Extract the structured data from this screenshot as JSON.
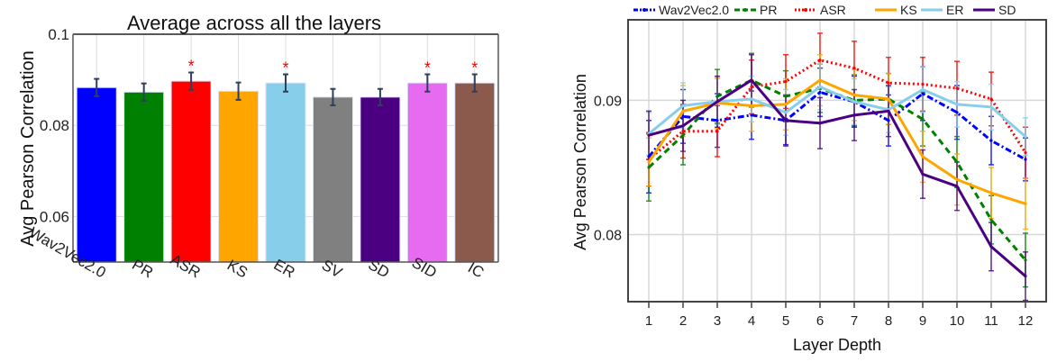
{
  "chart_data": [
    {
      "type": "bar",
      "title": "Average across all the layers",
      "xlabel": "",
      "ylabel": "Avg Pearson Correlation",
      "ylim": [
        0.05,
        0.1
      ],
      "yticks": [
        0.06,
        0.08,
        0.1
      ],
      "ytick_labels": [
        "0.06",
        "0.08",
        "0.1"
      ],
      "grid": true,
      "categories": [
        "Wav2Vec2.0",
        "PR",
        "ASR",
        "KS",
        "ER",
        "SV",
        "SD",
        "SID",
        "IC"
      ],
      "values": [
        0.0883,
        0.0873,
        0.0897,
        0.0875,
        0.0893,
        0.0862,
        0.0862,
        0.0893,
        0.0893
      ],
      "errors": [
        0.0019,
        0.0019,
        0.0019,
        0.0019,
        0.0019,
        0.0018,
        0.0018,
        0.0019,
        0.0019
      ],
      "colors": [
        "#0000ff",
        "#008000",
        "#ff0000",
        "#ffa500",
        "#87ceeb",
        "#808080",
        "#4b0082",
        "#e76bf0",
        "#8b5a4d"
      ],
      "significant": [
        false,
        false,
        true,
        false,
        true,
        false,
        false,
        true,
        true
      ],
      "significance_marker": "*",
      "significance_color": "#ff0000",
      "error_color": "#2f3e5c"
    },
    {
      "type": "line",
      "title": "",
      "xlabel": "Layer Depth",
      "ylabel": "Avg Pearson Correlation",
      "x": [
        1,
        2,
        3,
        4,
        5,
        6,
        7,
        8,
        9,
        10,
        11,
        12
      ],
      "xticks": [
        "1",
        "2",
        "3",
        "4",
        "5",
        "6",
        "7",
        "8",
        "9",
        "10",
        "11",
        "12"
      ],
      "ylim": [
        0.075,
        0.096
      ],
      "yticks": [
        0.08,
        0.09
      ],
      "ytick_labels": [
        "0.08",
        "0.09"
      ],
      "grid": true,
      "legend_position": "top",
      "series": [
        {
          "name": "Wav2Vec2.0",
          "color": "#0000ff",
          "style": "dashdot",
          "values": [
            0.0858,
            0.0888,
            0.0885,
            0.0889,
            0.0885,
            0.0906,
            0.0899,
            0.0885,
            0.0905,
            0.0891,
            0.087,
            0.0856
          ],
          "errors": [
            0.0027,
            0.002,
            0.002,
            0.0018,
            0.0018,
            0.0018,
            0.0019,
            0.0019,
            0.002,
            0.002,
            0.0018,
            0.0016
          ]
        },
        {
          "name": "PR",
          "color": "#008000",
          "style": "dashed",
          "values": [
            0.085,
            0.0874,
            0.0903,
            0.0915,
            0.0903,
            0.0909,
            0.09,
            0.0901,
            0.0886,
            0.0854,
            0.0811,
            0.0781
          ],
          "errors": [
            0.0025,
            0.0022,
            0.002,
            0.002,
            0.0019,
            0.0018,
            0.0019,
            0.0019,
            0.002,
            0.0019,
            0.0018,
            0.002
          ]
        },
        {
          "name": "ASR",
          "color": "#ff0000",
          "style": "dotted",
          "values": [
            0.0856,
            0.0877,
            0.0877,
            0.091,
            0.0914,
            0.093,
            0.0924,
            0.0913,
            0.0912,
            0.0909,
            0.0901,
            0.0861
          ],
          "errors": [
            0.002,
            0.002,
            0.0019,
            0.002,
            0.002,
            0.002,
            0.002,
            0.0019,
            0.002,
            0.002,
            0.002,
            0.0019
          ]
        },
        {
          "name": "KS",
          "color": "#ffa500",
          "style": "solid",
          "values": [
            0.0854,
            0.0892,
            0.0898,
            0.0896,
            0.0897,
            0.0915,
            0.0904,
            0.0901,
            0.0858,
            0.0841,
            0.0831,
            0.0823
          ],
          "errors": [
            0.0018,
            0.0019,
            0.0019,
            0.0019,
            0.0019,
            0.0019,
            0.0019,
            0.0019,
            0.0019,
            0.0019,
            0.0019,
            0.0019
          ]
        },
        {
          "name": "ER",
          "color": "#87ceeb",
          "style": "solid",
          "values": [
            0.0875,
            0.0896,
            0.0899,
            0.0901,
            0.0891,
            0.091,
            0.0899,
            0.0893,
            0.0908,
            0.0897,
            0.0895,
            0.0873
          ],
          "errors": [
            0.0016,
            0.0017,
            0.0017,
            0.0017,
            0.0017,
            0.0017,
            0.0017,
            0.0017,
            0.0017,
            0.0017,
            0.0017,
            0.0014
          ]
        },
        {
          "name": "SD",
          "color": "#4b0082",
          "style": "solid",
          "values": [
            0.0874,
            0.0881,
            0.0899,
            0.0915,
            0.0885,
            0.0883,
            0.0889,
            0.0892,
            0.0845,
            0.0836,
            0.0791,
            0.0769
          ],
          "errors": [
            0.0018,
            0.0019,
            0.0019,
            0.0019,
            0.0019,
            0.0019,
            0.0019,
            0.0019,
            0.0018,
            0.0018,
            0.0018,
            0.0018
          ]
        }
      ]
    }
  ]
}
